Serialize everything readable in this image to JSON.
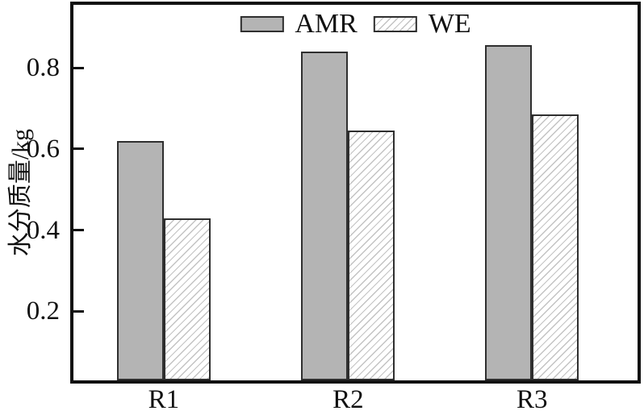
{
  "figure": {
    "background": "#ffffff",
    "frame_color": "#111111",
    "text_color": "#111111"
  },
  "chart_data": {
    "type": "bar",
    "title": "",
    "xlabel": "",
    "ylabel": "水分质量/kg",
    "categories": [
      "R1",
      "R2",
      "R3"
    ],
    "series": [
      {
        "name": "AMR",
        "values": [
          0.62,
          0.84,
          0.855
        ],
        "pattern": "solid",
        "fill": "#b4b4b4",
        "border": "#2f2f2f"
      },
      {
        "name": "WE",
        "values": [
          0.43,
          0.645,
          0.685
        ],
        "pattern": "diagonal-hatch",
        "fill": "#ffffff",
        "hatch_color": "#c3c3c3",
        "border": "#2f2f2f"
      }
    ],
    "ylim": [
      0.03,
      0.955
    ],
    "yticks": [
      0.2,
      0.4,
      0.6,
      0.8
    ],
    "ytick_format": "0.0",
    "grid": false,
    "legend_position": "top-center",
    "tick_direction": "in"
  }
}
